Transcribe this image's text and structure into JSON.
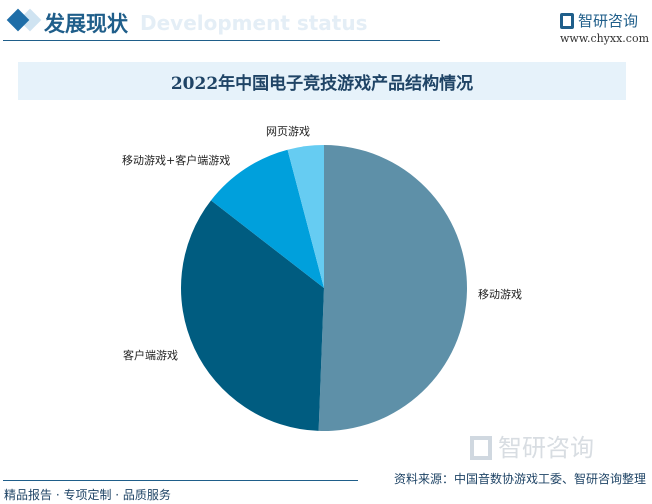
{
  "header": {
    "title": "发展现状",
    "subtitle": "Development status",
    "logo_text": "智研咨询",
    "url": "www.chyxx.com"
  },
  "chart_data": {
    "type": "pie",
    "title": "2022年中国电子竞技游戏产品结构情况",
    "categories": [
      "移动游戏",
      "客户端游戏",
      "移动游戏+客户端游戏",
      "网页游戏"
    ],
    "values": [
      50.6,
      34.9,
      10.4,
      4.1
    ],
    "unit": "%",
    "colors": [
      "#5e90a8",
      "#005c80",
      "#00a0dc",
      "#66ccf2"
    ],
    "start_angle": "top",
    "direction": "clockwise",
    "legend": "none"
  },
  "footer": {
    "source": "资料来源：中国音数协游戏工委、智研咨询整理",
    "slogan": "精品报告 · 专项定制 · 品质服务",
    "watermark": "智研咨询"
  }
}
